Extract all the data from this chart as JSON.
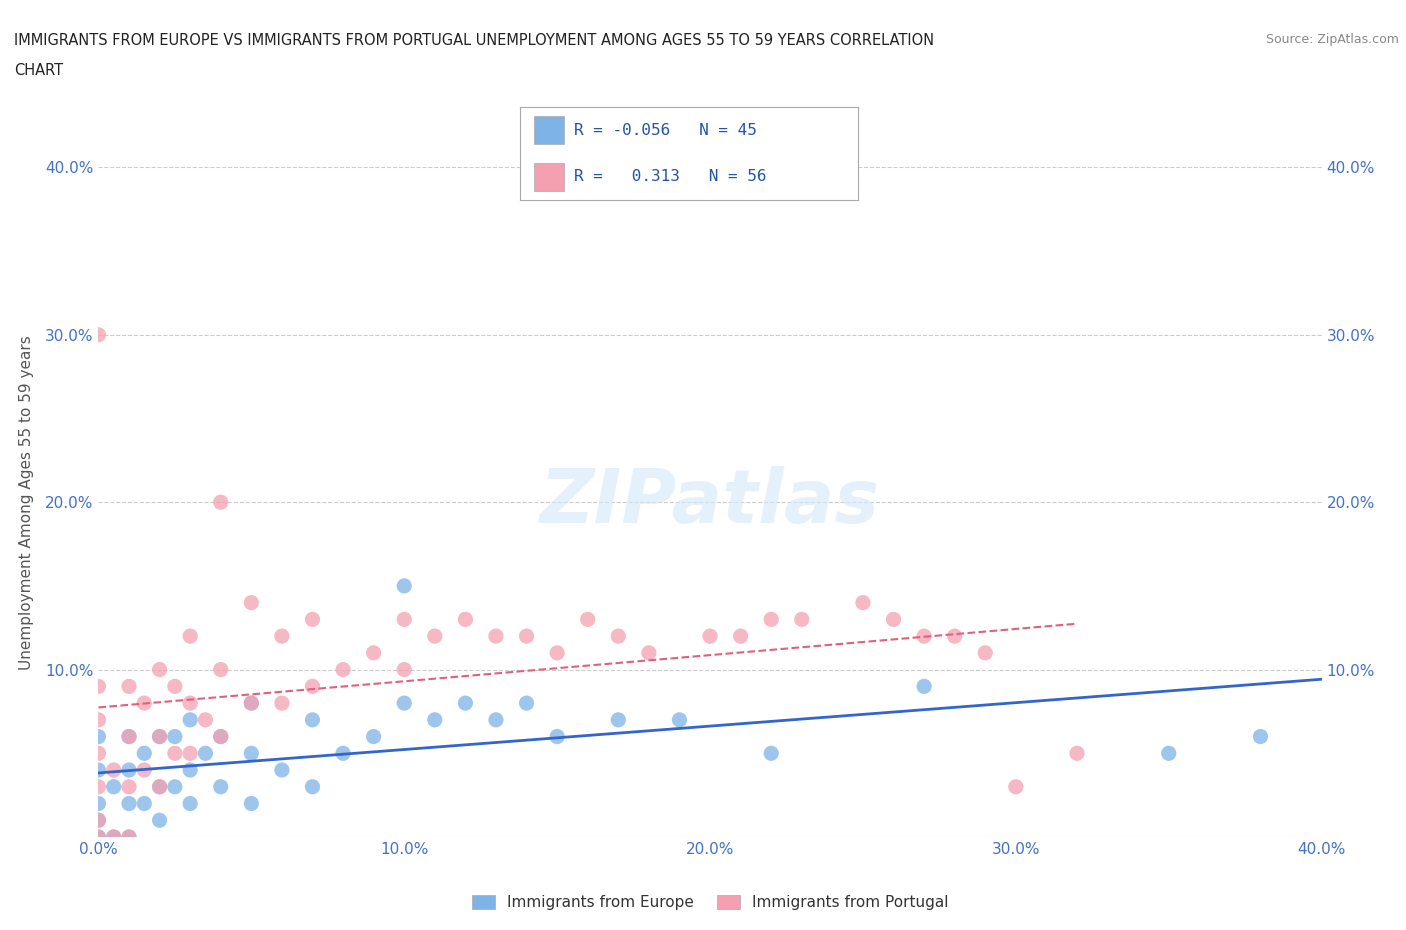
{
  "title_line1": "IMMIGRANTS FROM EUROPE VS IMMIGRANTS FROM PORTUGAL UNEMPLOYMENT AMONG AGES 55 TO 59 YEARS CORRELATION",
  "title_line2": "CHART",
  "source": "Source: ZipAtlas.com",
  "ylabel": "Unemployment Among Ages 55 to 59 years",
  "xlim": [
    0.0,
    0.4
  ],
  "ylim": [
    0.0,
    0.4
  ],
  "color_europe": "#7eb3e8",
  "color_portugal": "#f4a0b0",
  "trendline_europe_color": "#3366cc",
  "trendline_portugal_color": "#e06080",
  "trendline_europe_dashed_color": "#b0ccee",
  "R_europe": -0.056,
  "N_europe": 45,
  "R_portugal": 0.313,
  "N_portugal": 56,
  "watermark": "ZIPatlas",
  "legend_label_europe": "Immigrants from Europe",
  "legend_label_portugal": "Immigrants from Portugal",
  "europe_x": [
    0.0,
    0.0,
    0.0,
    0.0,
    0.0,
    0.005,
    0.005,
    0.01,
    0.01,
    0.01,
    0.01,
    0.015,
    0.015,
    0.02,
    0.02,
    0.02,
    0.025,
    0.025,
    0.03,
    0.03,
    0.03,
    0.035,
    0.04,
    0.04,
    0.05,
    0.05,
    0.05,
    0.06,
    0.07,
    0.07,
    0.08,
    0.09,
    0.1,
    0.1,
    0.11,
    0.12,
    0.13,
    0.14,
    0.15,
    0.17,
    0.19,
    0.22,
    0.27,
    0.35,
    0.38
  ],
  "europe_y": [
    0.0,
    0.01,
    0.02,
    0.04,
    0.06,
    0.0,
    0.03,
    0.0,
    0.02,
    0.04,
    0.06,
    0.02,
    0.05,
    0.01,
    0.03,
    0.06,
    0.03,
    0.06,
    0.02,
    0.04,
    0.07,
    0.05,
    0.03,
    0.06,
    0.02,
    0.05,
    0.08,
    0.04,
    0.03,
    0.07,
    0.05,
    0.06,
    0.08,
    0.15,
    0.07,
    0.08,
    0.07,
    0.08,
    0.06,
    0.07,
    0.07,
    0.05,
    0.09,
    0.05,
    0.06
  ],
  "portugal_x": [
    0.0,
    0.0,
    0.0,
    0.0,
    0.0,
    0.0,
    0.0,
    0.005,
    0.005,
    0.01,
    0.01,
    0.01,
    0.01,
    0.015,
    0.015,
    0.02,
    0.02,
    0.02,
    0.025,
    0.025,
    0.03,
    0.03,
    0.03,
    0.035,
    0.04,
    0.04,
    0.04,
    0.05,
    0.05,
    0.06,
    0.06,
    0.07,
    0.07,
    0.08,
    0.09,
    0.1,
    0.1,
    0.11,
    0.12,
    0.13,
    0.14,
    0.15,
    0.16,
    0.17,
    0.18,
    0.2,
    0.21,
    0.22,
    0.23,
    0.25,
    0.26,
    0.27,
    0.28,
    0.29,
    0.3,
    0.32
  ],
  "portugal_y": [
    0.0,
    0.01,
    0.03,
    0.05,
    0.07,
    0.09,
    0.3,
    0.0,
    0.04,
    0.0,
    0.03,
    0.06,
    0.09,
    0.04,
    0.08,
    0.03,
    0.06,
    0.1,
    0.05,
    0.09,
    0.05,
    0.08,
    0.12,
    0.07,
    0.06,
    0.1,
    0.2,
    0.08,
    0.14,
    0.08,
    0.12,
    0.09,
    0.13,
    0.1,
    0.11,
    0.1,
    0.13,
    0.12,
    0.13,
    0.12,
    0.12,
    0.11,
    0.13,
    0.12,
    0.11,
    0.12,
    0.12,
    0.13,
    0.13,
    0.14,
    0.13,
    0.12,
    0.12,
    0.11,
    0.03,
    0.05
  ]
}
